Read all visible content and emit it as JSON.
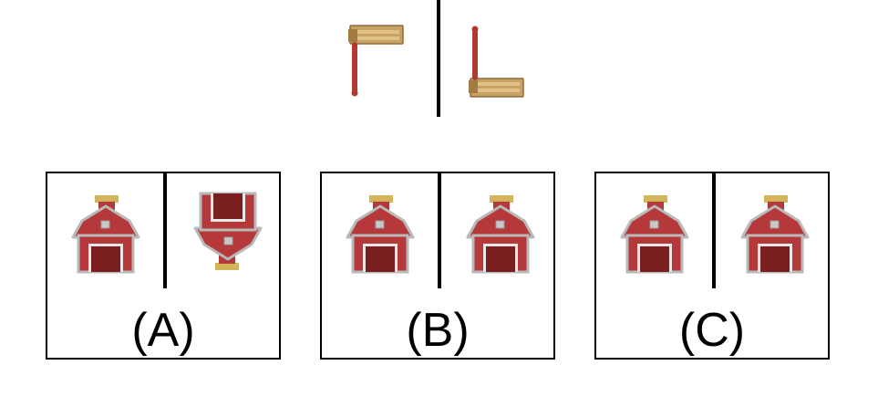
{
  "question": {
    "example_left_icon": "ratchet-icon",
    "example_right_icon": "ratchet-rotated-icon"
  },
  "options": [
    {
      "label": "(A)",
      "left_icon": "barn-icon",
      "right_icon": "barn-rotated-icon"
    },
    {
      "label": "(B)",
      "left_icon": "barn-icon",
      "right_icon": "barn-icon"
    },
    {
      "label": "(C)",
      "left_icon": "barn-icon",
      "right_icon": "barn-icon"
    }
  ],
  "colors": {
    "barn_red": "#b5393a",
    "barn_dark": "#7a1e20",
    "roof_gray": "#b9b9b9",
    "chimney_gold": "#d4b45a",
    "wood": "#c8a164",
    "handle_red": "#b03a2e"
  }
}
